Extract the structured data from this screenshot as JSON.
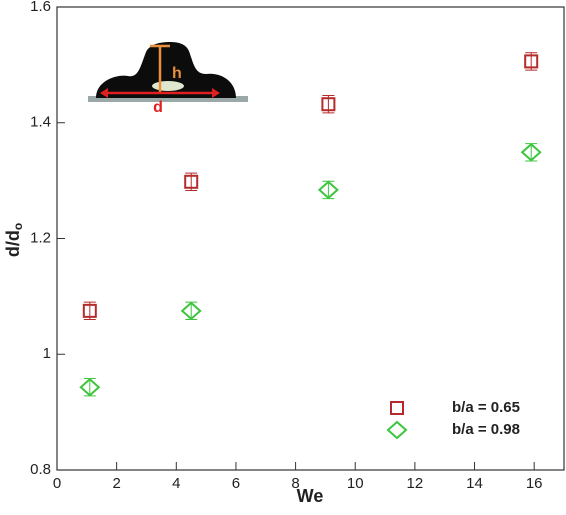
{
  "chart_data": {
    "type": "scatter",
    "xlabel": "We",
    "ylabel": "d/d",
    "ylabel_sub": "o",
    "xlim": [
      0,
      17
    ],
    "ylim": [
      0.8,
      1.6
    ],
    "xticks": [
      0,
      2,
      4,
      6,
      8,
      10,
      12,
      14,
      16
    ],
    "yticks": [
      0.8,
      1,
      1.2,
      1.4,
      1.6
    ],
    "annotations": [
      "h",
      "d"
    ],
    "legend": "lower right",
    "series": [
      {
        "name": "b/a = 0.65",
        "color": "#b52a2a",
        "marker": "square",
        "x": [
          1.1,
          4.5,
          9.1,
          15.9
        ],
        "values": [
          1.075,
          1.298,
          1.432,
          1.506
        ],
        "errors": [
          0.015,
          0.015,
          0.015,
          0.015
        ]
      },
      {
        "name": "b/a = 0.98",
        "color": "#3dc63d",
        "marker": "diamond",
        "x": [
          1.1,
          4.5,
          9.1,
          15.9
        ],
        "values": [
          0.943,
          1.075,
          1.284,
          1.349
        ],
        "errors": [
          0.015,
          0.015,
          0.015,
          0.015
        ]
      }
    ]
  }
}
